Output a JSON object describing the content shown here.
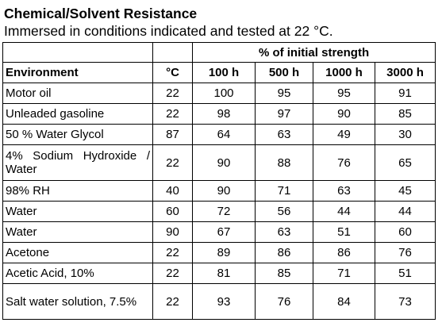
{
  "document": {
    "title": "Chemical/Solvent Resistance",
    "subtitle": "Immersed in conditions indicated and tested at 22 °C."
  },
  "table": {
    "group_header": "% of initial strength",
    "columns": [
      "Environment",
      "°C",
      "100 h",
      "500 h",
      "1000 h",
      "3000 h"
    ],
    "rows": [
      [
        "Motor oil",
        "22",
        "100",
        "95",
        "95",
        "91"
      ],
      [
        "Unleaded gasoline",
        "22",
        "98",
        "97",
        "90",
        "85"
      ],
      [
        "50 % Water Glycol",
        "87",
        "64",
        "63",
        "49",
        "30"
      ],
      [
        "4% Sodium Hydroxide / Water",
        "22",
        "90",
        "88",
        "76",
        "65"
      ],
      [
        "98% RH",
        "40",
        "90",
        "71",
        "63",
        "45"
      ],
      [
        "Water",
        "60",
        "72",
        "56",
        "44",
        "44"
      ],
      [
        "Water",
        "90",
        "67",
        "63",
        "51",
        "60"
      ],
      [
        "Acetone",
        "22",
        "89",
        "86",
        "86",
        "76"
      ],
      [
        "Acetic Acid, 10%",
        "22",
        "81",
        "85",
        "71",
        "51"
      ],
      [
        "Salt water solution, 7.5%",
        "22",
        "93",
        "76",
        "84",
        "73"
      ]
    ]
  }
}
